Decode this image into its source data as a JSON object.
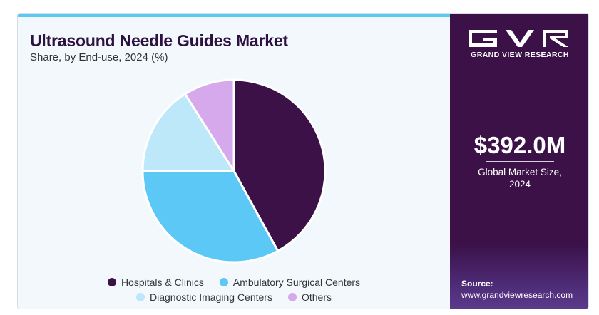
{
  "title": "Ultrasound Needle Guides Market",
  "subtitle": "Share, by End-use, 2024 (%)",
  "brand": {
    "name": "GRAND VIEW RESEARCH",
    "accent": "#5bc8f5",
    "panel": "#3b1148"
  },
  "stat": {
    "value": "$392.0M",
    "label_line1": "Global Market Size,",
    "label_line2": "2024"
  },
  "source": {
    "label": "Source:",
    "url": "www.grandviewresearch.com"
  },
  "chart_data": {
    "type": "pie",
    "title": "Ultrasound Needle Guides Market",
    "subtitle": "Share, by End-use, 2024 (%)",
    "categories": [
      "Hospitals & Clinics",
      "Ambulatory Surgical Centers",
      "Diagnostic Imaging Centers",
      "Others"
    ],
    "values": [
      42,
      33,
      16,
      9
    ],
    "colors": [
      "#3b1148",
      "#5bc8f5",
      "#bde8fa",
      "#d6a9ec"
    ],
    "start": "top, clockwise",
    "legend_placement": "bottom"
  },
  "legend": {
    "row1": [
      "Hospitals & Clinics",
      "Ambulatory Surgical Centers"
    ],
    "row2": [
      "Diagnostic Imaging Centers",
      "Others"
    ]
  }
}
